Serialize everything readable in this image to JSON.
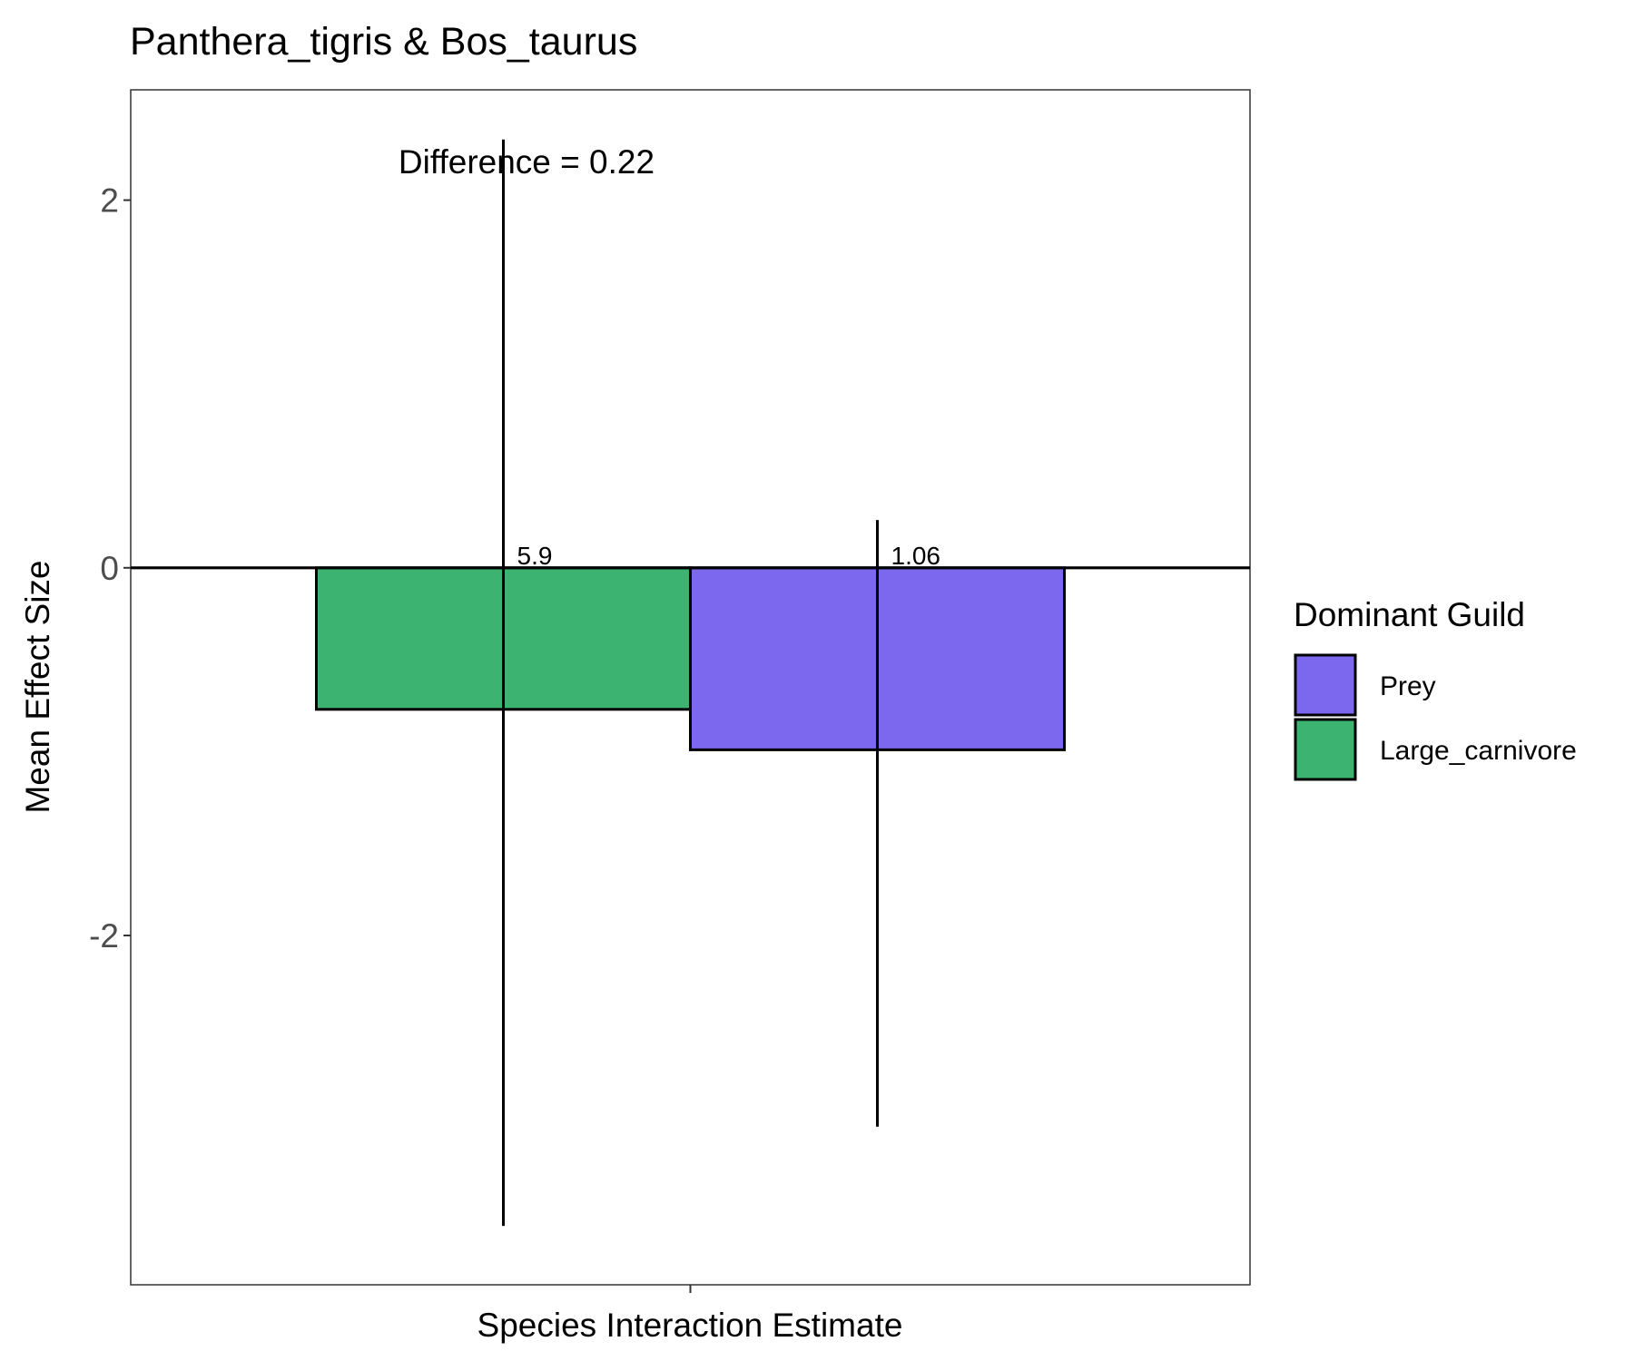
{
  "chart_data": {
    "type": "bar",
    "title": "Panthera_tigris & Bos_taurus",
    "xlabel": "Species Interaction Estimate",
    "ylabel": "Mean Effect Size",
    "categories": [
      "Species Interaction Estimate"
    ],
    "ylim": [
      -3.9,
      2.6
    ],
    "yticks": [
      -2,
      0,
      2
    ],
    "ytick_labels": [
      "-2",
      "0",
      "2"
    ],
    "grid": false,
    "annotation": "Difference = 0.22",
    "series": [
      {
        "name": "Large_carnivore",
        "color": "#3CB371",
        "value": -0.77,
        "error_low": -3.58,
        "error_high": 2.33,
        "label": "5.9"
      },
      {
        "name": "Prey",
        "color": "#7B68EE",
        "value": -0.99,
        "error_low": -3.04,
        "error_high": 0.26,
        "label": "1.06"
      }
    ],
    "legend": {
      "title": "Dominant Guild",
      "position": "right",
      "order": [
        "Prey",
        "Large_carnivore"
      ]
    }
  }
}
